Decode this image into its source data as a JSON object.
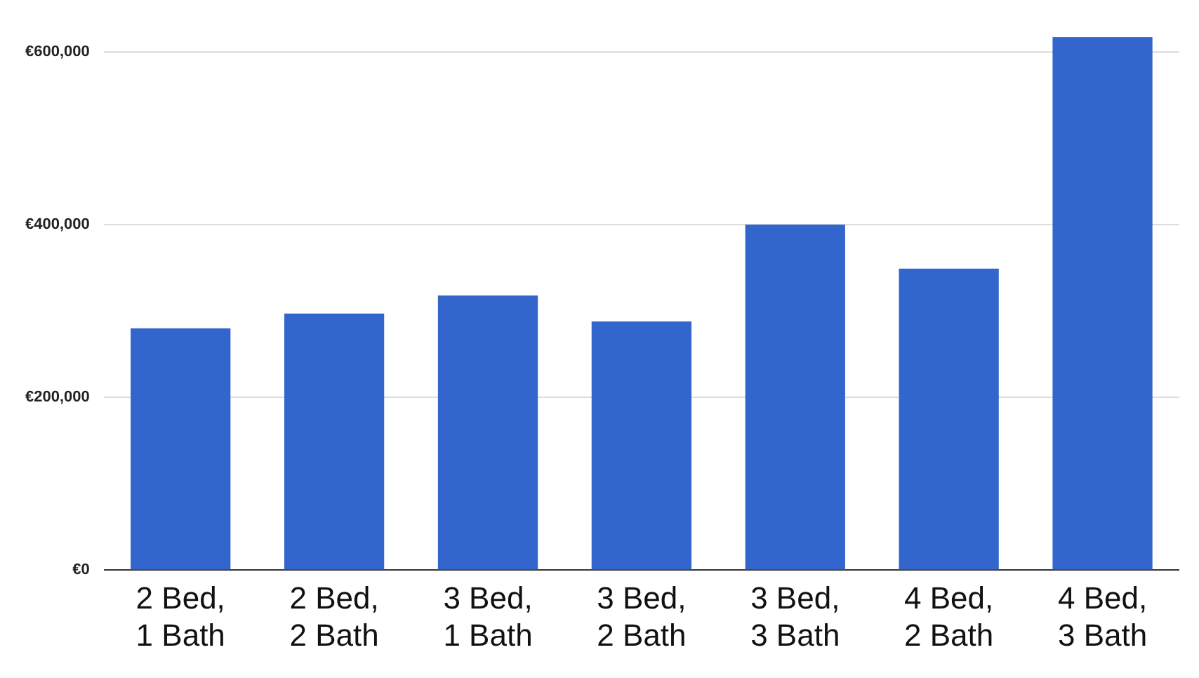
{
  "chart_data": {
    "type": "bar",
    "categories": [
      "2 Bed, 1 Bath",
      "2 Bed, 2 Bath",
      "3 Bed, 1 Bath",
      "3 Bed, 2 Bath",
      "3 Bed, 3 Bath",
      "4 Bed, 2 Bath",
      "4 Bed, 3 Bath"
    ],
    "values": [
      280000,
      297000,
      318000,
      288000,
      400000,
      349000,
      617000
    ],
    "color": "#3366cc",
    "ylim": [
      0,
      620000
    ],
    "yticks": [
      {
        "value": 0,
        "label": "€0"
      },
      {
        "value": 200000,
        "label": "€200,000"
      },
      {
        "value": 400000,
        "label": "€400,000"
      },
      {
        "value": 600000,
        "label": "€600,000"
      }
    ],
    "grid": "y",
    "legend": false
  }
}
